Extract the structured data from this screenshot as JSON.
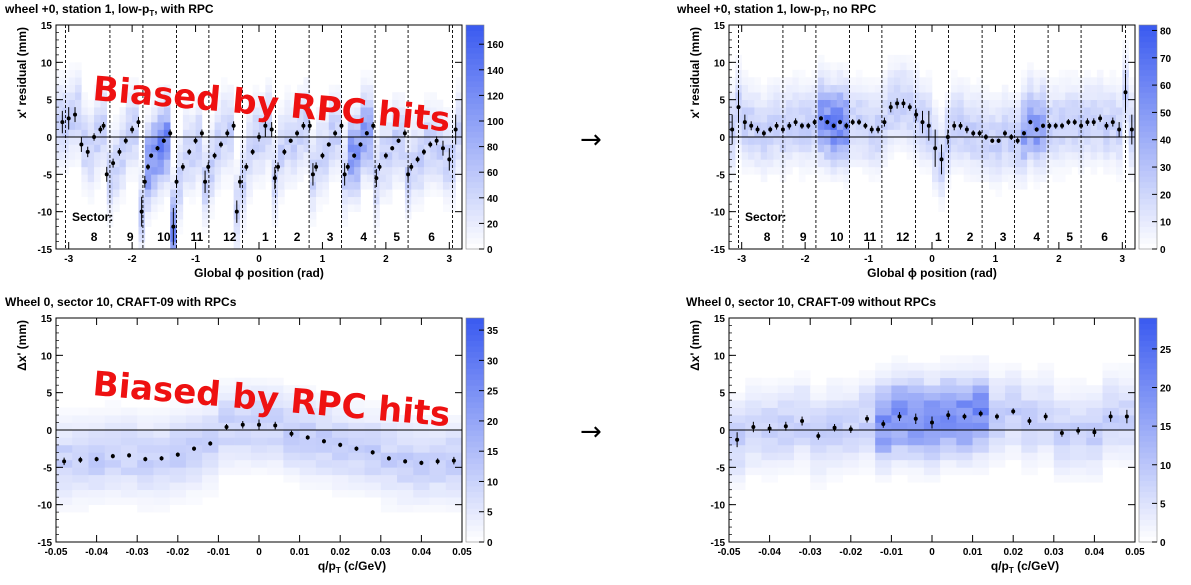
{
  "arrows": [
    "→",
    "→"
  ],
  "panels": [
    {
      "id": "p1",
      "title": "wheel +0, station 1, low-p",
      "title_sub": "T",
      "title_tail": ", with RPC",
      "xlabel": "Global ϕ position (rad)",
      "ylabel": "x' residual (mm)",
      "overlay": "Biased by RPC hits",
      "sector_label": "Sector:",
      "sectors": [
        "8",
        "9",
        "10",
        "11",
        "12",
        "1",
        "2",
        "3",
        "4",
        "5",
        "6"
      ],
      "sector_x": [
        -2.6,
        -2.03,
        -1.5,
        -0.98,
        -0.46,
        0.1,
        0.6,
        1.12,
        1.65,
        2.17,
        2.72
      ],
      "dashes": [
        -3.05,
        -2.35,
        -1.83,
        -1.3,
        -0.79,
        -0.26,
        0.26,
        0.79,
        1.3,
        1.83,
        2.35,
        3.05
      ],
      "xticks": [
        -3,
        -2,
        -1,
        0,
        1,
        2,
        3
      ],
      "yticks": [
        -15,
        -10,
        -5,
        0,
        5,
        10,
        15
      ],
      "zticks": [
        0,
        20,
        40,
        60,
        80,
        100,
        120,
        140,
        160
      ],
      "zmax": 175
    },
    {
      "id": "p2",
      "title": "wheel +0, station 1, low-p",
      "title_sub": "T",
      "title_tail": ", no RPC",
      "xlabel": "Global ϕ position (rad)",
      "ylabel": "x' residual (mm)",
      "overlay": "",
      "sector_label": "Sector:",
      "sectors": [
        "8",
        "9",
        "10",
        "11",
        "12",
        "1",
        "2",
        "3",
        "4",
        "5",
        "6"
      ],
      "sector_x": [
        -2.6,
        -2.03,
        -1.5,
        -0.98,
        -0.46,
        0.1,
        0.6,
        1.12,
        1.65,
        2.17,
        2.72
      ],
      "dashes": [
        -3.05,
        -2.35,
        -1.83,
        -1.3,
        -0.79,
        -0.26,
        0.26,
        0.79,
        1.3,
        1.83,
        2.35,
        3.05
      ],
      "xticks": [
        -3,
        -2,
        -1,
        0,
        1,
        2,
        3
      ],
      "yticks": [
        -15,
        -10,
        -5,
        0,
        5,
        10,
        15
      ],
      "zticks": [
        0,
        10,
        20,
        30,
        40,
        50,
        60,
        70,
        80
      ],
      "zmax": 82
    },
    {
      "id": "p3",
      "title": "Wheel 0, sector 10, CRAFT-09 with RPCs",
      "title_sub": "",
      "title_tail": "",
      "xlabel": "q/p",
      "xlabel_sub": "T",
      "xlabel_tail": " (c/GeV)",
      "ylabel": "Δx' (mm)",
      "overlay": "Biased by RPC hits",
      "xticks": [
        -0.05,
        -0.04,
        -0.03,
        -0.02,
        -0.01,
        0,
        0.01,
        0.02,
        0.03,
        0.04,
        0.05
      ],
      "yticks": [
        -15,
        -10,
        -5,
        0,
        5,
        10,
        15
      ],
      "zticks": [
        0,
        5,
        10,
        15,
        20,
        25,
        30,
        35
      ],
      "zmax": 37
    },
    {
      "id": "p4",
      "title": "Wheel 0, sector 10, CRAFT-09 without RPCs",
      "title_sub": "",
      "title_tail": "",
      "xlabel": "q/p",
      "xlabel_sub": "T",
      "xlabel_tail": " (c/GeV)",
      "ylabel": "Δx' (mm)",
      "overlay": "",
      "xticks": [
        -0.05,
        -0.04,
        -0.03,
        -0.02,
        -0.01,
        0,
        0.01,
        0.02,
        0.03,
        0.04,
        0.05
      ],
      "yticks": [
        -15,
        -10,
        -5,
        0,
        5,
        10,
        15
      ],
      "zticks": [
        0,
        5,
        10,
        15,
        20,
        25
      ],
      "zmax": 29
    }
  ],
  "colors": {
    "scale_high": "#3a5af0",
    "scale_low": "#ffffff",
    "overlay": "#ee1111"
  },
  "chart_data": [
    {
      "type": "heatmap",
      "title": "wheel +0, station 1, low-pT, with RPC",
      "xlabel": "Global ϕ position (rad)",
      "ylabel": "x' residual (mm)",
      "xlim": [
        -3.2,
        3.2
      ],
      "ylim": [
        -15,
        15
      ],
      "zlim": [
        0,
        175
      ],
      "profile_x": [
        -3.1,
        -3.0,
        -2.9,
        -2.8,
        -2.7,
        -2.6,
        -2.5,
        -2.45,
        -2.4,
        -2.3,
        -2.2,
        -2.1,
        -2.0,
        -1.9,
        -1.85,
        -1.8,
        -1.75,
        -1.7,
        -1.6,
        -1.5,
        -1.4,
        -1.35,
        -1.3,
        -1.2,
        -1.1,
        -1.0,
        -0.9,
        -0.85,
        -0.8,
        -0.7,
        -0.6,
        -0.5,
        -0.4,
        -0.35,
        -0.3,
        -0.2,
        -0.1,
        0.0,
        0.1,
        0.2,
        0.25,
        0.3,
        0.4,
        0.5,
        0.6,
        0.7,
        0.8,
        0.85,
        0.9,
        1.0,
        1.1,
        1.2,
        1.3,
        1.35,
        1.4,
        1.5,
        1.6,
        1.7,
        1.8,
        1.85,
        1.9,
        2.0,
        2.1,
        2.2,
        2.3,
        2.35,
        2.4,
        2.5,
        2.6,
        2.7,
        2.8,
        2.9,
        3.0,
        3.1
      ],
      "profile_y": [
        2,
        2.5,
        3,
        -1,
        -2,
        0,
        1,
        1.5,
        -5,
        -3.5,
        -2,
        -0.5,
        1,
        2,
        -10,
        -6,
        -4,
        -2.5,
        -1.5,
        -0.5,
        0.5,
        -12,
        -6,
        -4,
        -2,
        -0.5,
        0.5,
        -6,
        -4,
        -2.5,
        -1,
        0.5,
        1.5,
        -10,
        -6,
        -4,
        -2,
        0,
        1.5,
        1,
        -5.5,
        -4,
        -2,
        -0.5,
        0.5,
        1.5,
        1.5,
        -5,
        -4,
        -2.5,
        -1,
        0.5,
        1.5,
        -5,
        -4,
        -2.5,
        -1,
        0.5,
        1.5,
        -5.5,
        -4,
        -2.5,
        -1.5,
        -0.5,
        0.5,
        -5,
        -4,
        -3,
        -2,
        -1,
        -0.5,
        -1.5,
        -3,
        1
      ],
      "profile_err": [
        1.5,
        1.5,
        1,
        1,
        0.7,
        0.5,
        0.5,
        0.5,
        1,
        0.6,
        0.5,
        0.4,
        0.5,
        0.7,
        2,
        0.8,
        0.4,
        0.3,
        0.3,
        0.3,
        0.5,
        2.5,
        0.8,
        0.5,
        0.4,
        0.4,
        0.5,
        1.5,
        0.6,
        0.4,
        0.4,
        0.5,
        0.6,
        1.5,
        0.8,
        0.5,
        0.4,
        0.6,
        1.5,
        1,
        1.5,
        0.6,
        0.4,
        0.3,
        0.4,
        0.5,
        0.6,
        1.5,
        0.6,
        0.4,
        0.3,
        0.4,
        0.5,
        1.5,
        0.5,
        0.3,
        0.3,
        0.3,
        0.5,
        1.2,
        0.5,
        0.4,
        0.3,
        0.3,
        0.5,
        1,
        0.5,
        0.4,
        0.4,
        0.4,
        0.6,
        1,
        1.5,
        2
      ]
    },
    {
      "type": "heatmap",
      "title": "wheel +0, station 1, low-pT, no RPC",
      "xlabel": "Global ϕ position (rad)",
      "ylabel": "x' residual (mm)",
      "xlim": [
        -3.2,
        3.2
      ],
      "ylim": [
        -15,
        15
      ],
      "zlim": [
        0,
        82
      ],
      "profile_x": [
        -3.15,
        -3.05,
        -2.95,
        -2.85,
        -2.75,
        -2.65,
        -2.55,
        -2.45,
        -2.35,
        -2.25,
        -2.15,
        -2.05,
        -1.95,
        -1.85,
        -1.75,
        -1.65,
        -1.55,
        -1.45,
        -1.35,
        -1.25,
        -1.15,
        -1.05,
        -0.95,
        -0.85,
        -0.75,
        -0.65,
        -0.55,
        -0.45,
        -0.35,
        -0.25,
        -0.15,
        -0.05,
        0.05,
        0.15,
        0.25,
        0.35,
        0.45,
        0.55,
        0.65,
        0.75,
        0.85,
        0.95,
        1.05,
        1.15,
        1.25,
        1.35,
        1.45,
        1.55,
        1.65,
        1.75,
        1.85,
        1.95,
        2.05,
        2.15,
        2.25,
        2.35,
        2.45,
        2.55,
        2.65,
        2.75,
        2.85,
        2.95,
        3.05,
        3.15
      ],
      "profile_y": [
        1,
        4,
        2,
        1.5,
        1,
        0.5,
        1,
        1.5,
        1,
        1.5,
        2,
        1.5,
        1.5,
        2,
        2.5,
        2,
        1.5,
        2,
        1.5,
        2,
        2,
        1.5,
        1,
        1,
        2,
        4,
        4.5,
        4.5,
        4,
        3,
        2,
        1.5,
        -1.5,
        -3,
        0,
        1.5,
        1.5,
        1,
        0.5,
        0.5,
        0,
        -0.5,
        -0.5,
        0.5,
        0,
        -0.5,
        0.5,
        2,
        1,
        1.5,
        1.5,
        1.5,
        1.5,
        2,
        2,
        1.5,
        2,
        2,
        2.5,
        1.5,
        2,
        1,
        6,
        1
      ],
      "profile_err": [
        2,
        2,
        1,
        0.6,
        0.5,
        0.4,
        0.4,
        0.5,
        0.5,
        0.5,
        0.5,
        0.4,
        0.4,
        0.4,
        0.3,
        0.3,
        0.3,
        0.3,
        0.4,
        0.4,
        0.4,
        0.4,
        0.5,
        0.5,
        0.6,
        0.7,
        0.7,
        0.6,
        0.5,
        0.8,
        1.5,
        2,
        2.5,
        2,
        1,
        0.6,
        0.5,
        0.5,
        0.4,
        0.4,
        0.4,
        0.3,
        0.3,
        0.4,
        0.4,
        0.4,
        0.3,
        0.3,
        0.3,
        0.3,
        0.4,
        0.4,
        0.4,
        0.4,
        0.4,
        0.4,
        0.5,
        0.5,
        0.5,
        0.5,
        0.6,
        1,
        2.5,
        2
      ]
    },
    {
      "type": "heatmap",
      "title": "Wheel 0, sector 10, CRAFT-09 with RPCs",
      "xlabel": "q/pT (c/GeV)",
      "ylabel": "Δx' (mm)",
      "xlim": [
        -0.05,
        0.05
      ],
      "ylim": [
        -15,
        15
      ],
      "zlim": [
        0,
        37
      ],
      "profile_x": [
        -0.048,
        -0.044,
        -0.04,
        -0.036,
        -0.032,
        -0.028,
        -0.024,
        -0.02,
        -0.016,
        -0.012,
        -0.008,
        -0.004,
        0.0,
        0.004,
        0.008,
        0.012,
        0.016,
        0.02,
        0.024,
        0.028,
        0.032,
        0.036,
        0.04,
        0.044,
        0.048
      ],
      "profile_y": [
        -4.2,
        -4,
        -3.9,
        -3.5,
        -3.4,
        -3.9,
        -3.8,
        -3.3,
        -2.5,
        -1.8,
        0.4,
        0.7,
        0.7,
        0.6,
        -0.5,
        -1,
        -1.5,
        -2,
        -2.5,
        -3,
        -3.8,
        -4.2,
        -4.4,
        -4.2,
        -4.1
      ],
      "profile_err": [
        0.5,
        0.4,
        0.3,
        0.3,
        0.3,
        0.3,
        0.3,
        0.3,
        0.3,
        0.3,
        0.4,
        0.5,
        0.7,
        0.5,
        0.4,
        0.3,
        0.3,
        0.3,
        0.3,
        0.3,
        0.3,
        0.3,
        0.3,
        0.4,
        0.5
      ]
    },
    {
      "type": "heatmap",
      "title": "Wheel 0, sector 10, CRAFT-09 without RPCs",
      "xlabel": "q/pT (c/GeV)",
      "ylabel": "Δx' (mm)",
      "xlim": [
        -0.05,
        0.05
      ],
      "ylim": [
        -15,
        15
      ],
      "zlim": [
        0,
        29
      ],
      "profile_x": [
        -0.048,
        -0.044,
        -0.04,
        -0.036,
        -0.032,
        -0.028,
        -0.024,
        -0.02,
        -0.016,
        -0.012,
        -0.008,
        -0.004,
        0.0,
        0.004,
        0.008,
        0.012,
        0.016,
        0.02,
        0.024,
        0.028,
        0.032,
        0.036,
        0.04,
        0.044,
        0.048
      ],
      "profile_y": [
        -1.3,
        0.4,
        0.2,
        0.5,
        1.2,
        -0.8,
        0.3,
        0.1,
        1.5,
        0.8,
        1.8,
        1.5,
        1.0,
        2.0,
        1.8,
        2.2,
        1.8,
        2.5,
        1.2,
        1.8,
        -0.4,
        -0.1,
        -0.3,
        1.8,
        1.8
      ],
      "profile_err": [
        1,
        0.7,
        0.6,
        0.6,
        0.6,
        0.5,
        0.5,
        0.5,
        0.5,
        0.5,
        0.6,
        0.7,
        0.8,
        0.6,
        0.4,
        0.4,
        0.4,
        0.4,
        0.5,
        0.5,
        0.5,
        0.5,
        0.6,
        0.7,
        0.9
      ]
    }
  ]
}
